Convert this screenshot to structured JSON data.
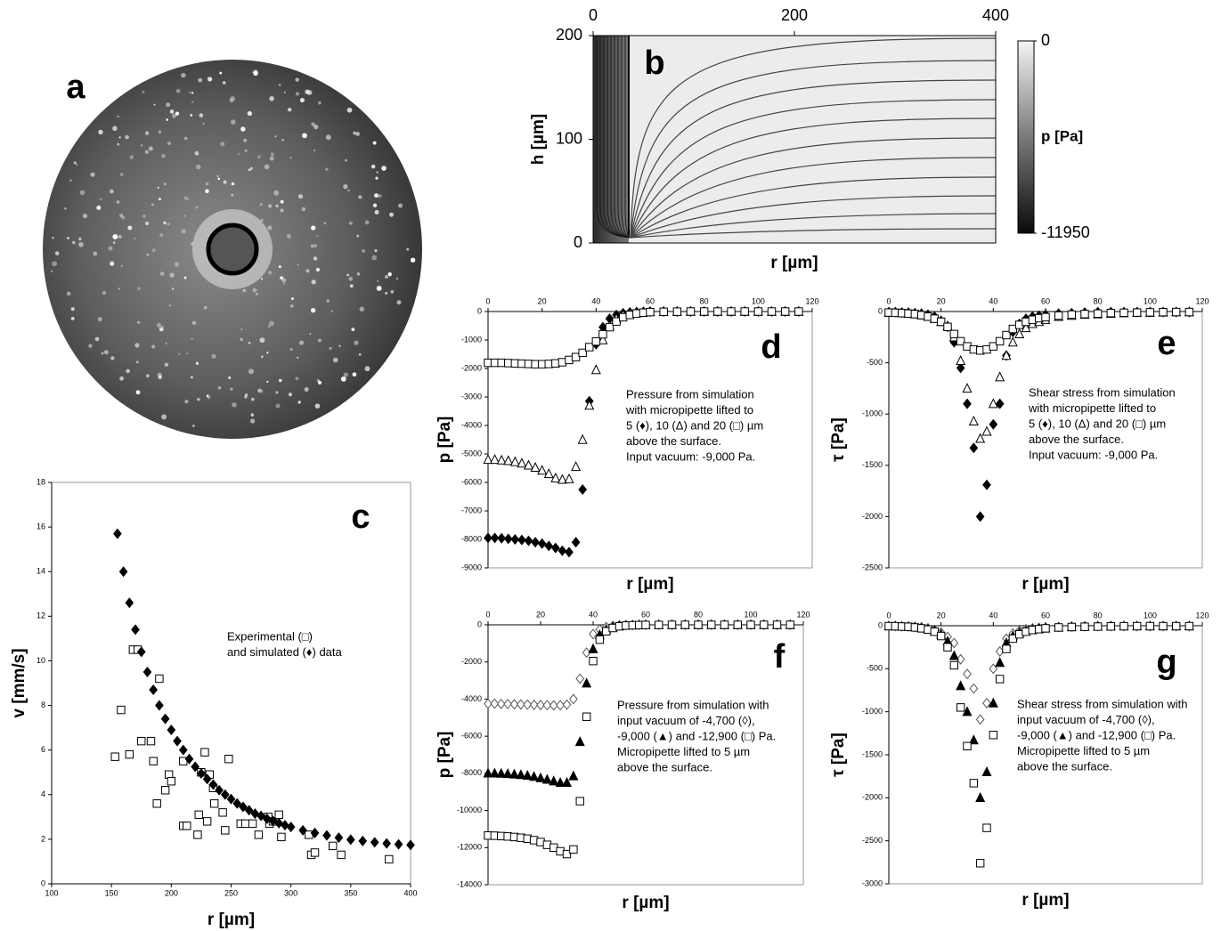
{
  "chart_data": [
    {
      "type": "image",
      "panel_label": "a"
    },
    {
      "type": "contour",
      "panel_label": "b",
      "xlabel": "r [µm]",
      "ylabel": "h [µm]",
      "xlim": [
        0,
        400
      ],
      "xticks": [
        0,
        200,
        400
      ],
      "ylim": [
        0,
        200
      ],
      "yticks": [
        0,
        100,
        200
      ],
      "colorbar": {
        "label": "p [Pa]",
        "lim": [
          -11950,
          0
        ],
        "ticks": [
          0,
          -11950
        ]
      }
    },
    {
      "type": "scatter",
      "panel_label": "c",
      "xlabel": "r [µm]",
      "ylabel": "v [mm/s]",
      "annotation": [
        "Experimental (□)",
        "and simulated (♦) data"
      ],
      "xlim": [
        100,
        400
      ],
      "xticks": [
        100,
        150,
        200,
        250,
        300,
        350,
        400
      ],
      "ylim": [
        0,
        18
      ],
      "yticks": [
        0,
        2,
        4,
        6,
        8,
        10,
        12,
        14,
        16,
        18
      ],
      "series": [
        {
          "marker": "square",
          "filled": false,
          "color": "#000000",
          "x": [
            153,
            158,
            165,
            168,
            172,
            175,
            183,
            185,
            188,
            190,
            195,
            198,
            200,
            210,
            210,
            213,
            222,
            223,
            225,
            228,
            230,
            232,
            235,
            236,
            243,
            245,
            248,
            258,
            262,
            268,
            273,
            281,
            282,
            285,
            290,
            292,
            315,
            317,
            320,
            335,
            342,
            382
          ],
          "values": [
            5.7,
            7.8,
            5.8,
            10.5,
            10.5,
            6.4,
            6.4,
            5.5,
            3.6,
            9.2,
            4.2,
            4.9,
            4.6,
            5.5,
            2.6,
            2.6,
            2.2,
            3.1,
            5.0,
            5.9,
            2.8,
            4.9,
            4.3,
            3.6,
            3.2,
            2.4,
            5.6,
            2.7,
            2.7,
            2.7,
            2.2,
            3.0,
            2.7,
            2.8,
            3.1,
            2.1,
            2.2,
            1.3,
            1.4,
            1.7,
            1.3,
            1.1
          ]
        },
        {
          "marker": "diamond",
          "filled": true,
          "color": "#000000",
          "x": [
            155,
            160,
            165,
            170,
            175,
            180,
            185,
            190,
            195,
            200,
            205,
            210,
            215,
            220,
            225,
            230,
            235,
            240,
            245,
            250,
            255,
            260,
            265,
            270,
            275,
            280,
            285,
            290,
            295,
            300,
            310,
            320,
            330,
            340,
            350,
            360,
            370,
            380,
            390,
            400
          ],
          "values": [
            15.7,
            14.0,
            12.6,
            11.4,
            10.4,
            9.5,
            8.7,
            8.0,
            7.4,
            6.9,
            6.4,
            6.0,
            5.6,
            5.25,
            4.95,
            4.7,
            4.45,
            4.2,
            4.0,
            3.8,
            3.6,
            3.45,
            3.3,
            3.15,
            3.05,
            2.92,
            2.82,
            2.72,
            2.63,
            2.55,
            2.4,
            2.28,
            2.17,
            2.07,
            1.98,
            1.92,
            1.86,
            1.81,
            1.77,
            1.74
          ]
        }
      ]
    },
    {
      "type": "scatter",
      "panel_label": "d",
      "xlabel": "r [µm]",
      "ylabel": "p [Pa]",
      "annotation": [
        "Pressure from simulation",
        "with micropipette lifted to",
        "5 (♦), 10 (Δ) and 20 (□) µm",
        "above the surface.",
        "Input vacuum: -9,000 Pa."
      ],
      "xlim": [
        0,
        120
      ],
      "xticks": [
        0,
        20,
        40,
        60,
        80,
        100,
        120
      ],
      "ylim": [
        -9000,
        0
      ],
      "yticks": [
        0,
        -1000,
        -2000,
        -3000,
        -4000,
        -5000,
        -6000,
        -7000,
        -8000,
        -9000
      ],
      "x": [
        0,
        2.5,
        5,
        7.5,
        10,
        12.5,
        15,
        17.5,
        20,
        22.5,
        25,
        27.5,
        30,
        32.5,
        35,
        37.5,
        40,
        42.5,
        45,
        47.5,
        50,
        52.5,
        55,
        57.5,
        60,
        65,
        70,
        75,
        80,
        85,
        90,
        95,
        100,
        105,
        110,
        115
      ],
      "series": [
        {
          "marker": "diamond",
          "filled": true,
          "color": "#000000",
          "values": [
            -7950,
            -7950,
            -7960,
            -7980,
            -8000,
            -8020,
            -8050,
            -8100,
            -8150,
            -8230,
            -8300,
            -8400,
            -8450,
            -8100,
            -6250,
            -3150,
            -1150,
            -550,
            -250,
            -120,
            -60,
            -30,
            -20,
            -10,
            -5,
            0,
            0,
            0,
            0,
            0,
            0,
            0,
            0,
            0,
            0,
            0
          ]
        },
        {
          "marker": "triangle",
          "filled": false,
          "color": "#000000",
          "values": [
            -5200,
            -5200,
            -5220,
            -5240,
            -5280,
            -5330,
            -5400,
            -5480,
            -5580,
            -5700,
            -5850,
            -5900,
            -5880,
            -5450,
            -4500,
            -3300,
            -2050,
            -1000,
            -500,
            -250,
            -120,
            -60,
            -30,
            -20,
            -10,
            -5,
            0,
            0,
            0,
            0,
            0,
            0,
            0,
            0,
            0,
            0
          ]
        },
        {
          "marker": "square",
          "filled": false,
          "color": "#000000",
          "values": [
            -1800,
            -1800,
            -1800,
            -1810,
            -1820,
            -1830,
            -1840,
            -1850,
            -1850,
            -1840,
            -1820,
            -1780,
            -1700,
            -1600,
            -1450,
            -1250,
            -1050,
            -800,
            -550,
            -350,
            -200,
            -120,
            -70,
            -40,
            -20,
            -10,
            -5,
            0,
            0,
            0,
            0,
            0,
            0,
            0,
            0,
            0
          ]
        }
      ]
    },
    {
      "type": "scatter",
      "panel_label": "e",
      "xlabel": "r [µm]",
      "ylabel": "τ [Pa]",
      "annotation": [
        "Shear stress from simulation",
        "with micropipette lifted to",
        "5 (♦), 10 (Δ) and 20 (□) µm",
        "above the surface.",
        "Input vacuum: -9,000 Pa."
      ],
      "xlim": [
        0,
        120
      ],
      "xticks": [
        0,
        20,
        40,
        60,
        80,
        100,
        120
      ],
      "ylim": [
        -2500,
        0
      ],
      "yticks": [
        0,
        -500,
        -1000,
        -1500,
        -2000,
        -2500
      ],
      "x": [
        0,
        2.5,
        5,
        7.5,
        10,
        12.5,
        15,
        17.5,
        20,
        22.5,
        25,
        27.5,
        30,
        32.5,
        35,
        37.5,
        40,
        42.5,
        45,
        47.5,
        50,
        52.5,
        55,
        57.5,
        60,
        65,
        70,
        75,
        80,
        85,
        90,
        95,
        100,
        105,
        110,
        115
      ],
      "series": [
        {
          "marker": "diamond",
          "filled": true,
          "color": "#000000",
          "values": [
            -5,
            -5,
            -10,
            -10,
            -15,
            -20,
            -30,
            -50,
            -90,
            -150,
            -300,
            -550,
            -900,
            -1330,
            -2000,
            -1690,
            -1100,
            -900,
            -430,
            -200,
            -120,
            -70,
            -50,
            -40,
            -30,
            -20,
            -15,
            -10,
            -5,
            -5,
            -5,
            -5,
            -5,
            -5,
            -5,
            -5
          ]
        },
        {
          "marker": "triangle",
          "filled": false,
          "color": "#000000",
          "values": [
            -10,
            -10,
            -15,
            -20,
            -25,
            -35,
            -50,
            -70,
            -100,
            -140,
            -250,
            -480,
            -750,
            -1070,
            -1240,
            -1170,
            -900,
            -640,
            -430,
            -300,
            -220,
            -160,
            -120,
            -100,
            -80,
            -50,
            -40,
            -30,
            -25,
            -20,
            -15,
            -10,
            -10,
            -8,
            -5,
            -5
          ]
        },
        {
          "marker": "square",
          "filled": false,
          "color": "#000000",
          "values": [
            -10,
            -12,
            -15,
            -20,
            -25,
            -35,
            -50,
            -70,
            -100,
            -150,
            -220,
            -290,
            -340,
            -370,
            -380,
            -370,
            -340,
            -290,
            -230,
            -170,
            -130,
            -100,
            -80,
            -65,
            -55,
            -40,
            -30,
            -25,
            -20,
            -15,
            -12,
            -10,
            -8,
            -6,
            -5,
            -5
          ]
        }
      ]
    },
    {
      "type": "scatter",
      "panel_label": "f",
      "xlabel": "r [µm]",
      "ylabel": "p [Pa]",
      "annotation": [
        "Pressure from simulation with",
        "input vacuum of -4,700 (◊),",
        "-9,000 (▲) and -12,900 (□) Pa.",
        "Micropipette lifted to 5 µm",
        "above the surface."
      ],
      "xlim": [
        0,
        120
      ],
      "xticks": [
        0,
        20,
        40,
        60,
        80,
        100,
        120
      ],
      "ylim": [
        -14000,
        0
      ],
      "yticks": [
        0,
        -2000,
        -4000,
        -6000,
        -8000,
        -10000,
        -12000,
        -14000
      ],
      "x": [
        0,
        2.5,
        5,
        7.5,
        10,
        12.5,
        15,
        17.5,
        20,
        22.5,
        25,
        27.5,
        30,
        32.5,
        35,
        37.5,
        40,
        42.5,
        45,
        47.5,
        50,
        52.5,
        55,
        57.5,
        60,
        65,
        70,
        75,
        80,
        85,
        90,
        95,
        100,
        105,
        110,
        115
      ],
      "series": [
        {
          "marker": "diamond",
          "filled": false,
          "color": "#555555",
          "values": [
            -4250,
            -4250,
            -4260,
            -4270,
            -4280,
            -4290,
            -4300,
            -4310,
            -4320,
            -4330,
            -4340,
            -4330,
            -4300,
            -4000,
            -2900,
            -1500,
            -500,
            -250,
            -120,
            -60,
            -30,
            -20,
            -10,
            -5,
            0,
            0,
            0,
            0,
            0,
            0,
            0,
            0,
            0,
            0,
            0,
            0
          ]
        },
        {
          "marker": "triangle",
          "filled": true,
          "color": "#000000",
          "values": [
            -8000,
            -8000,
            -8010,
            -8030,
            -8050,
            -8080,
            -8120,
            -8180,
            -8250,
            -8330,
            -8420,
            -8500,
            -8500,
            -8150,
            -6300,
            -3150,
            -1300,
            -550,
            -250,
            -120,
            -60,
            -30,
            -20,
            -10,
            -5,
            0,
            0,
            0,
            0,
            0,
            0,
            0,
            0,
            0,
            0,
            0
          ]
        },
        {
          "marker": "square",
          "filled": false,
          "color": "#000000",
          "values": [
            -11350,
            -11360,
            -11380,
            -11400,
            -11430,
            -11470,
            -11520,
            -11600,
            -11700,
            -11850,
            -12000,
            -12200,
            -12350,
            -12100,
            -9500,
            -4950,
            -1950,
            -800,
            -350,
            -170,
            -80,
            -40,
            -25,
            -15,
            -8,
            -5,
            0,
            0,
            0,
            0,
            0,
            0,
            0,
            0,
            0,
            0
          ]
        }
      ]
    },
    {
      "type": "scatter",
      "panel_label": "g",
      "xlabel": "r [µm]",
      "ylabel": "τ [Pa]",
      "annotation": [
        "Shear stress from simulation with",
        "input vacuum of -4,700 (◊),",
        "-9,000 (▲) and -12,900 (□) Pa.",
        "Micropipette lifted to 5 µm",
        "above the surface."
      ],
      "xlim": [
        0,
        120
      ],
      "xticks": [
        0,
        20,
        40,
        60,
        80,
        100,
        120
      ],
      "ylim": [
        -3000,
        0
      ],
      "yticks": [
        0,
        -500,
        -1000,
        -1500,
        -2000,
        -2500,
        -3000
      ],
      "x": [
        0,
        2.5,
        5,
        7.5,
        10,
        12.5,
        15,
        17.5,
        20,
        22.5,
        25,
        27.5,
        30,
        32.5,
        35,
        37.5,
        40,
        42.5,
        45,
        47.5,
        50,
        52.5,
        55,
        57.5,
        60,
        65,
        70,
        75,
        80,
        85,
        90,
        95,
        100,
        105,
        110,
        115
      ],
      "series": [
        {
          "marker": "diamond",
          "filled": false,
          "color": "#555555",
          "values": [
            -5,
            -5,
            -8,
            -10,
            -15,
            -20,
            -30,
            -50,
            -80,
            -130,
            -200,
            -390,
            -560,
            -730,
            -1090,
            -900,
            -500,
            -300,
            -150,
            -90,
            -60,
            -40,
            -30,
            -25,
            -20,
            -15,
            -10,
            -8,
            -5,
            -5,
            -5,
            -5,
            -5,
            -5,
            -5,
            -5
          ]
        },
        {
          "marker": "triangle",
          "filled": true,
          "color": "#000000",
          "values": [
            -5,
            -5,
            -8,
            -10,
            -15,
            -25,
            -40,
            -60,
            -100,
            -180,
            -350,
            -700,
            -1000,
            -1330,
            -2000,
            -1700,
            -900,
            -430,
            -200,
            -120,
            -80,
            -60,
            -45,
            -35,
            -30,
            -20,
            -15,
            -10,
            -8,
            -5,
            -5,
            -5,
            -5,
            -5,
            -5,
            -5
          ]
        },
        {
          "marker": "square",
          "filled": false,
          "color": "#000000",
          "values": [
            -5,
            -6,
            -10,
            -12,
            -20,
            -30,
            -45,
            -70,
            -120,
            -250,
            -460,
            -950,
            -1400,
            -1830,
            -2760,
            -2350,
            -1270,
            -620,
            -270,
            -150,
            -100,
            -70,
            -50,
            -40,
            -30,
            -20,
            -15,
            -12,
            -10,
            -8,
            -6,
            -5,
            -5,
            -5,
            -5,
            -5
          ]
        }
      ]
    }
  ]
}
